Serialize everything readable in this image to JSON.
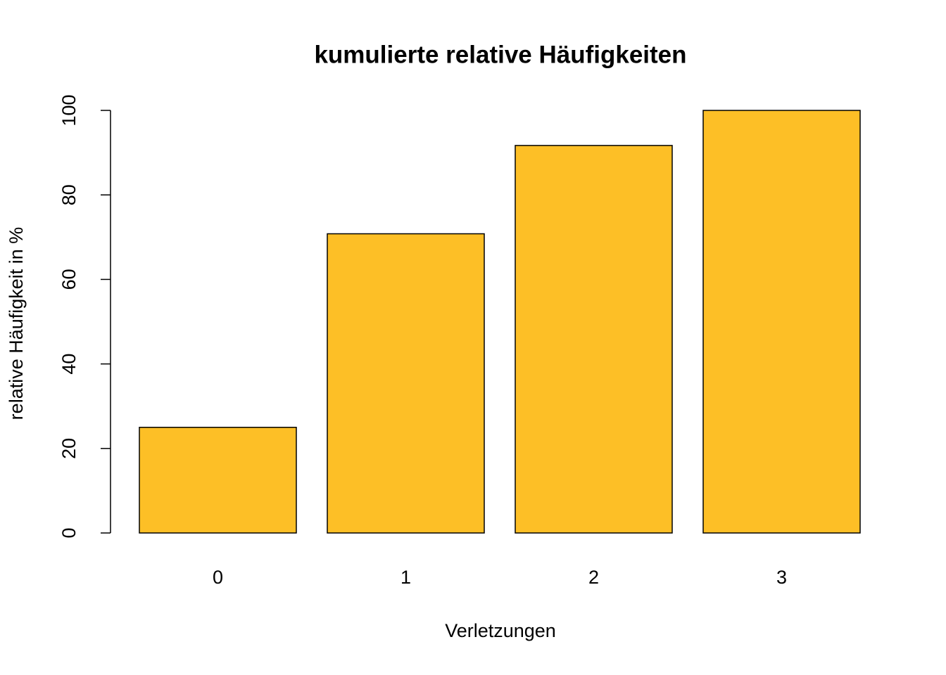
{
  "chart_data": {
    "type": "bar",
    "title": "kumulierte relative Häufigkeiten",
    "x_label": "Verletzungen",
    "y_label": "relative Häufigkeit in %",
    "categories": [
      "0",
      "1",
      "2",
      "3"
    ],
    "values": [
      25,
      70.8,
      91.7,
      100
    ],
    "color": "#fdbf26",
    "ylim": [
      0,
      100
    ],
    "yticks": [
      0,
      20,
      40,
      60,
      80,
      100
    ],
    "grid": false
  }
}
